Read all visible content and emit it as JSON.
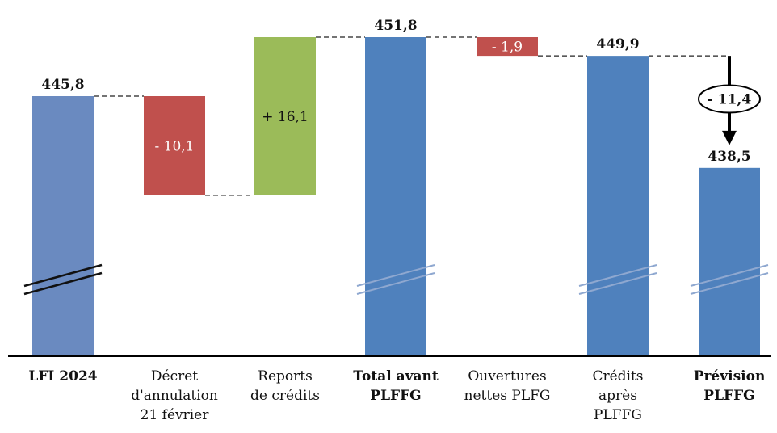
{
  "chart_data": {
    "type": "bar",
    "subtype": "waterfall",
    "axis_break": true,
    "grid": false,
    "categories": [
      {
        "lines": [
          "LFI 2024"
        ],
        "bold": true
      },
      {
        "lines": [
          "Décret",
          "d'annulation",
          "21 février"
        ],
        "bold": false
      },
      {
        "lines": [
          "Reports",
          "de crédits"
        ],
        "bold": false
      },
      {
        "lines": [
          "Total avant",
          "PLFFG"
        ],
        "bold": true
      },
      {
        "lines": [
          "Ouvertures",
          "nettes PLFG"
        ],
        "bold": false
      },
      {
        "lines": [
          "Crédits",
          "après",
          "PLFFG"
        ],
        "bold": false
      },
      {
        "lines": [
          "Prévision",
          "PLFFG"
        ],
        "bold": true
      }
    ],
    "bars": [
      {
        "kind": "total",
        "base": 0,
        "value": 445.8,
        "label": "445,8",
        "color": "#6a8ac0"
      },
      {
        "kind": "delta",
        "from": 445.8,
        "to": 435.7,
        "label": "- 10,1",
        "color": "#c0504d"
      },
      {
        "kind": "delta",
        "from": 435.7,
        "to": 451.8,
        "label": "+ 16,1",
        "color": "#9bbb59"
      },
      {
        "kind": "total",
        "base": 0,
        "value": 451.8,
        "label": "451,8",
        "color": "#4f81bd"
      },
      {
        "kind": "delta",
        "from": 451.8,
        "to": 449.9,
        "label": "- 1,9",
        "color": "#c0504d"
      },
      {
        "kind": "total",
        "base": 0,
        "value": 449.9,
        "label": "449,9",
        "color": "#4f81bd"
      },
      {
        "kind": "total",
        "base": 0,
        "value": 438.5,
        "label": "438,5",
        "color": "#4f81bd"
      }
    ],
    "arrow_delta": {
      "from": 449.9,
      "to": 438.5,
      "label": "- 11,4"
    },
    "ylim_visible": [
      425,
      453
    ]
  }
}
